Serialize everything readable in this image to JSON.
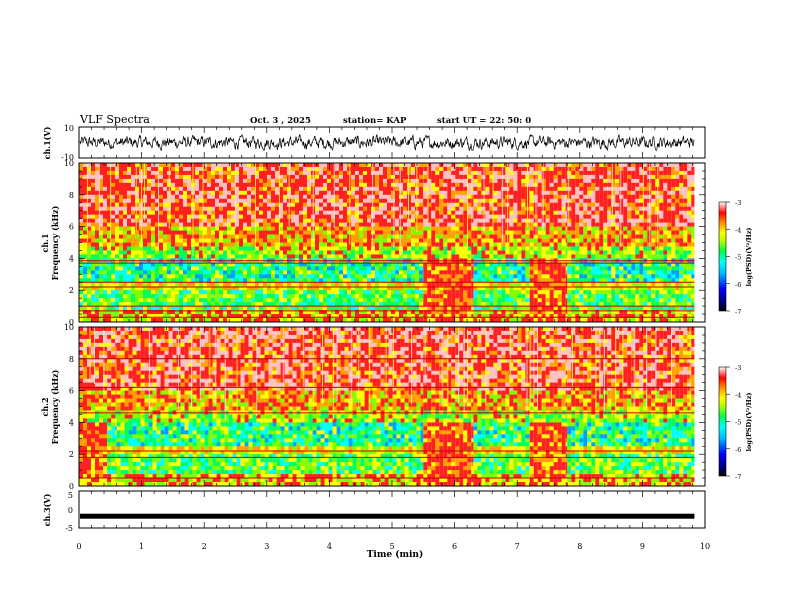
{
  "header": {
    "title": "VLF Spectra",
    "date": "Oct. 3 , 2025",
    "station": "station= KAP",
    "start": "start UT = 22: 50: 0"
  },
  "colors": {
    "spectrogram": [
      "#000080",
      "#0000ff",
      "#00a0ff",
      "#00ffff",
      "#00ff60",
      "#80ff00",
      "#ffff00",
      "#ffa000",
      "#ff2020",
      "#ffc0c0"
    ],
    "waveform": "#000000"
  },
  "chart_data": [
    {
      "type": "line",
      "name": "ch1-waveform",
      "ylabel": "ch.1(V)",
      "ylim": [
        -10,
        10
      ],
      "yticks": [
        "10",
        "-10"
      ],
      "xlim": [
        0,
        10
      ],
      "x_span": [
        0,
        9.83
      ],
      "description_value": "noisy waveform around 0 V, amplitude about ±3 V"
    },
    {
      "type": "heatmap",
      "name": "ch1-spectrogram",
      "ylabel_line1": "ch.1",
      "ylabel_line2": "Frequency (kHz)",
      "ylim": [
        0,
        10
      ],
      "yticks": [
        "0",
        "2",
        "4",
        "6",
        "8",
        "10"
      ],
      "xlim": [
        0,
        10
      ],
      "x_span": [
        0,
        9.83
      ],
      "colorbar": {
        "label": "log(PSD)(V²/Hz)",
        "range": [
          -7,
          -3
        ],
        "ticks": [
          "-3",
          "-4",
          "-5",
          "-6",
          "-7"
        ]
      },
      "segments": [
        {
          "x": [
            0,
            5.5
          ],
          "bright_low": false
        },
        {
          "x": [
            5.5,
            6.3
          ],
          "bright_low": true
        },
        {
          "x": [
            6.3,
            7.2
          ],
          "bright_low": false
        },
        {
          "x": [
            7.2,
            7.8
          ],
          "bright_low": true
        },
        {
          "x": [
            7.8,
            9.83
          ],
          "bright_low": false
        }
      ],
      "lines_khz": [
        0.3,
        0.7,
        1.0,
        2.2,
        2.5,
        3.7,
        3.85
      ]
    },
    {
      "type": "heatmap",
      "name": "ch2-spectrogram",
      "ylabel_line1": "ch.2",
      "ylabel_line2": "Frequency (kHz)",
      "ylim": [
        0,
        10
      ],
      "yticks": [
        "0",
        "2",
        "4",
        "6",
        "8",
        "10"
      ],
      "xlim": [
        0,
        10
      ],
      "x_span": [
        0,
        9.83
      ],
      "colorbar": {
        "label": "log(PSD)(V²/Hz)",
        "range": [
          -7,
          -3
        ],
        "ticks": [
          "-3",
          "-4",
          "-5",
          "-6",
          "-7"
        ]
      },
      "segments": [
        {
          "x": [
            0,
            0.45
          ],
          "bright_low": true
        },
        {
          "x": [
            0.45,
            0.6
          ],
          "bright_low": false
        },
        {
          "x": [
            0.6,
            5.5
          ],
          "bright_low": false
        },
        {
          "x": [
            5.5,
            6.3
          ],
          "bright_low": true
        },
        {
          "x": [
            6.3,
            7.2
          ],
          "bright_low": false
        },
        {
          "x": [
            7.2,
            7.8
          ],
          "bright_low": true
        },
        {
          "x": [
            7.8,
            9.83
          ],
          "bright_low": false
        }
      ],
      "lines_khz": [
        0.5,
        1.8,
        2.2,
        4.6,
        6.2,
        8.0
      ]
    },
    {
      "type": "line",
      "name": "ch3-waveform",
      "ylabel": "ch.3(V)",
      "ylim": [
        -5,
        5
      ],
      "yticks": [
        "5",
        "0",
        "-5"
      ],
      "xlim": [
        0,
        10
      ],
      "x_span": [
        0,
        9.83
      ],
      "level_v": -1.8,
      "xlabel": "Time (min)",
      "xticks": [
        "0",
        "1",
        "2",
        "3",
        "4",
        "5",
        "6",
        "7",
        "8",
        "9",
        "10"
      ]
    }
  ]
}
